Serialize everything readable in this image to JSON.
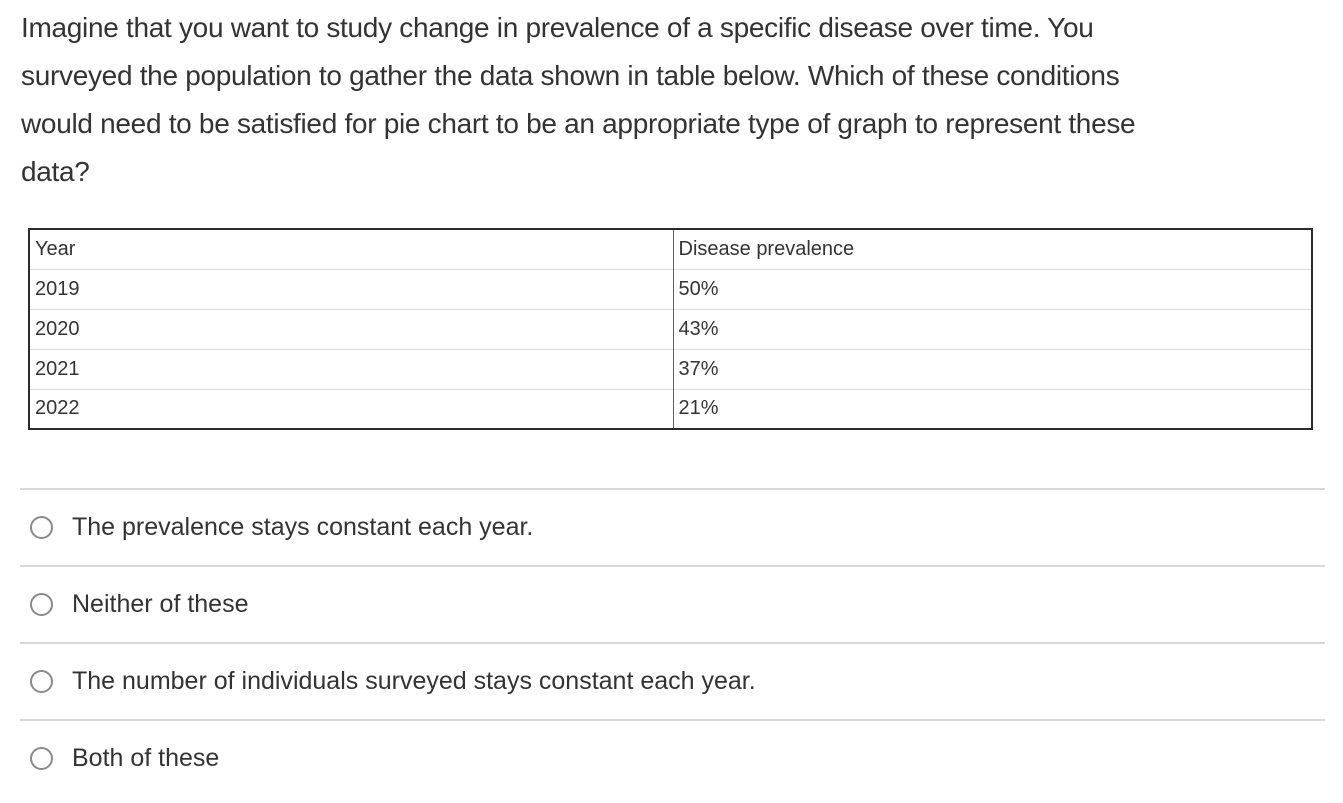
{
  "question": {
    "text": "Imagine that you want to study change in prevalence of a specific disease over time. You\nsurveyed the population to gather the data shown in table below. Which of these conditions\nwould need to be satisfied for pie chart to be an appropriate type of graph to represent these\ndata?"
  },
  "table": {
    "columns": [
      "Year",
      "Disease prevalence"
    ],
    "rows": [
      [
        "2019",
        "50%"
      ],
      [
        "2020",
        "43%"
      ],
      [
        "2021",
        "37%"
      ],
      [
        "2022",
        "21%"
      ]
    ]
  },
  "options": [
    {
      "label": "The prevalence stays constant each year.",
      "selected": false
    },
    {
      "label": "Neither of these",
      "selected": false
    },
    {
      "label": "The number of individuals surveyed stays constant each year.",
      "selected": false
    },
    {
      "label": "Both of these",
      "selected": false
    }
  ],
  "colors": {
    "text": "#333333",
    "table_outer_border": "#2b2b2b",
    "table_row_divider": "#dedede",
    "table_column_divider": "#5f5f5f",
    "option_divider": "#d8d8d8",
    "radio_border": "#8a8a8a",
    "background": "#ffffff"
  }
}
